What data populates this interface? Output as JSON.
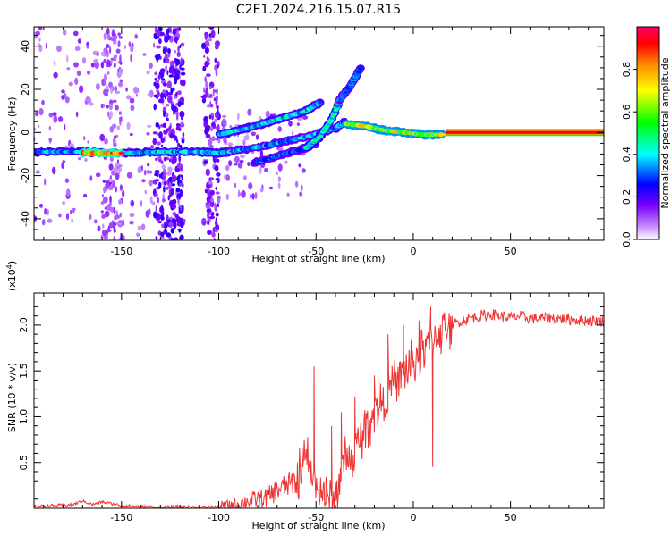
{
  "title": "C2E1.2024.216.15.07.R15",
  "chart_data": [
    {
      "type": "heatmap",
      "xlabel": "Height of straight line (km)",
      "ylabel": "Frequency (Hz)",
      "xlim": [
        -195,
        98
      ],
      "ylim": [
        -50,
        49
      ],
      "xticks": [
        -150,
        -100,
        -50,
        0,
        50
      ],
      "yticks": [
        -40,
        -20,
        0,
        20,
        40
      ],
      "xtick_labels": [
        "-150",
        "-100",
        "-50",
        "0",
        "50"
      ],
      "ytick_labels": [
        "-40",
        "-20",
        "0",
        "20",
        "40"
      ],
      "colorbar": {
        "label": "Normalized spectral amplitude",
        "range": [
          0,
          1
        ],
        "ticks": [
          0.0,
          0.2,
          0.4,
          0.6,
          0.8
        ],
        "tick_labels": [
          "0.0",
          "0.2",
          "0.4",
          "0.6",
          "0.8"
        ]
      },
      "ridges": [
        {
          "amplitude": 0.45,
          "points": [
            [
              -195,
              -9
            ],
            [
              -170,
              -9
            ],
            [
              -150,
              -9.5
            ],
            [
              -130,
              -9
            ],
            [
              -110,
              -9
            ],
            [
              -100,
              -9.5
            ],
            [
              -95,
              -9
            ]
          ]
        },
        {
          "amplitude": 0.95,
          "points": [
            [
              -170,
              -9.3
            ],
            [
              -150,
              -9.6
            ]
          ]
        },
        {
          "amplitude": 0.4,
          "points": [
            [
              -95,
              -9
            ],
            [
              -75,
              -6
            ],
            [
              -55,
              -2
            ],
            [
              -40,
              2
            ],
            [
              -35,
              5
            ]
          ]
        },
        {
          "amplitude": 0.45,
          "points": [
            [
              -100,
              -1
            ],
            [
              -85,
              2
            ],
            [
              -70,
              6
            ],
            [
              -55,
              10
            ],
            [
              -48,
              14
            ]
          ]
        },
        {
          "amplitude": 0.35,
          "points": [
            [
              -82,
              -14
            ],
            [
              -70,
              -11
            ],
            [
              -58,
              -8
            ],
            [
              -50,
              -5
            ]
          ]
        },
        {
          "amplitude": 0.5,
          "points": [
            [
              -55,
              -7
            ],
            [
              -48,
              -2
            ],
            [
              -42,
              6
            ],
            [
              -38,
              14
            ]
          ]
        },
        {
          "amplitude": 0.35,
          "points": [
            [
              -38,
              15
            ],
            [
              -32,
              22
            ],
            [
              -27,
              30
            ]
          ]
        },
        {
          "amplitude": 0.75,
          "points": [
            [
              -35,
              4
            ],
            [
              -25,
              3
            ],
            [
              -15,
              1
            ],
            [
              -5,
              0
            ],
            [
              5,
              -1
            ],
            [
              15,
              -1
            ]
          ]
        },
        {
          "amplitude": 0.9,
          "points": [
            [
              17,
              0
            ],
            [
              98,
              0
            ]
          ]
        }
      ]
    },
    {
      "type": "line",
      "xlabel": "Height of straight line (km)",
      "ylabel": "SNR (10 * v/v)",
      "ylabel_scale": "(x10",
      "ylabel_scale_exp": "4",
      "ylabel_scale_close": ")",
      "xlim": [
        -195,
        98
      ],
      "ylim": [
        0,
        2.35
      ],
      "xticks": [
        -150,
        -100,
        -50,
        0,
        50
      ],
      "yticks": [
        0.5,
        1.0,
        1.5,
        2.0
      ],
      "xtick_labels": [
        "-150",
        "-100",
        "-50",
        "0",
        "50"
      ],
      "ytick_labels": [
        "0.5",
        "1.0",
        "1.5",
        "2.0"
      ],
      "color": "#ee3333",
      "series": [
        {
          "x": [
            -195,
            -185,
            -175,
            -170,
            -165,
            -160,
            -150,
            -140,
            -130,
            -120,
            -110,
            -100,
            -95,
            -90,
            -85,
            -80,
            -75,
            -70,
            -65,
            -60,
            -58,
            -55,
            -52,
            -50,
            -48,
            -46,
            -44,
            -42,
            -40,
            -38,
            -36,
            -34,
            -32,
            -30,
            -28,
            -26,
            -24,
            -22,
            -20,
            -18,
            -16,
            -14,
            -12,
            -10,
            -8,
            -6,
            -4,
            -2,
            0,
            2,
            4,
            6,
            8,
            10,
            12,
            15,
            20,
            25,
            30,
            35,
            40,
            45,
            50,
            55,
            60,
            70,
            80,
            90,
            98
          ],
          "y": [
            0.02,
            0.03,
            0.04,
            0.08,
            0.04,
            0.07,
            0.03,
            0.02,
            0.01,
            0.02,
            0.01,
            0.02,
            0.03,
            0.05,
            0.08,
            0.1,
            0.12,
            0.2,
            0.25,
            0.3,
            0.45,
            0.55,
            0.35,
            0.25,
            0.2,
            0.15,
            0.12,
            0.08,
            0.1,
            0.35,
            0.45,
            0.55,
            0.5,
            0.6,
            0.7,
            0.8,
            0.9,
            1.0,
            1.05,
            1.1,
            1.15,
            1.2,
            1.3,
            1.35,
            1.4,
            1.45,
            1.5,
            1.55,
            1.6,
            1.65,
            1.7,
            1.75,
            1.8,
            1.85,
            1.9,
            1.95,
            2.0,
            2.05,
            2.08,
            2.1,
            2.12,
            2.1,
            2.08,
            2.1,
            2.07,
            2.08,
            2.06,
            2.05,
            2.04
          ]
        }
      ],
      "spikes": [
        [
          -51,
          1.55
        ],
        [
          -42,
          0.9
        ],
        [
          -37,
          1.05
        ],
        [
          -30,
          1.22
        ],
        [
          -20,
          1.45
        ],
        [
          -13,
          1.9
        ],
        [
          -5,
          2.0
        ],
        [
          3,
          2.05
        ],
        [
          9,
          2.2
        ]
      ],
      "dips": [
        [
          10,
          0.45
        ],
        [
          -45,
          0.05
        ]
      ]
    }
  ]
}
